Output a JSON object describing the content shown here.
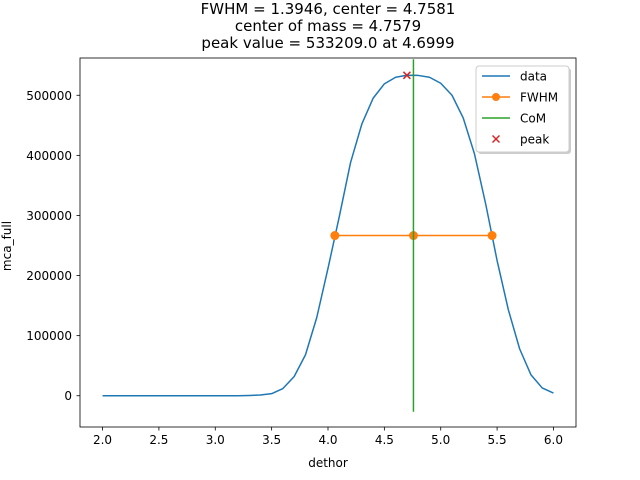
{
  "chart_data": {
    "type": "line",
    "title_lines": [
      "FWHM = 1.3946, center = 4.7581",
      "center of mass = 4.7579",
      "peak value = 533209.0 at 4.6999"
    ],
    "xlabel": "dethor",
    "ylabel": "mca_full",
    "xlim": [
      1.8,
      6.2
    ],
    "ylim": [
      -52000,
      562000
    ],
    "x_ticks": [
      2.0,
      2.5,
      3.0,
      3.5,
      4.0,
      4.5,
      5.0,
      5.5,
      6.0
    ],
    "x_tick_labels": [
      "2.0",
      "2.5",
      "3.0",
      "3.5",
      "4.0",
      "4.5",
      "5.0",
      "5.5",
      "6.0"
    ],
    "y_ticks": [
      0,
      100000,
      200000,
      300000,
      400000,
      500000
    ],
    "y_tick_labels": [
      "0",
      "100000",
      "200000",
      "300000",
      "400000",
      "500000"
    ],
    "grid": false,
    "legend_position": "top-right",
    "series": [
      {
        "name": "data",
        "color": "#1f77b4",
        "marker": "none",
        "x": [
          2.0,
          2.1,
          2.2,
          2.3,
          2.4,
          2.5,
          2.6,
          2.7,
          2.8,
          2.9,
          3.0,
          3.1,
          3.2,
          3.3,
          3.4,
          3.5,
          3.6,
          3.7,
          3.8,
          3.9,
          4.0,
          4.1,
          4.2,
          4.3,
          4.4,
          4.5,
          4.6,
          4.7,
          4.8,
          4.9,
          5.0,
          5.1,
          5.2,
          5.3,
          5.4,
          5.5,
          5.6,
          5.7,
          5.8,
          5.9,
          6.0
        ],
        "y": [
          0,
          0,
          0,
          0,
          0,
          0,
          0,
          0,
          0,
          0,
          0,
          0,
          0,
          500,
          1200,
          3500,
          12000,
          32000,
          68000,
          130000,
          212000,
          298000,
          388000,
          452000,
          495000,
          519000,
          530000,
          533209,
          533000,
          530000,
          520000,
          500000,
          462000,
          402000,
          318000,
          225000,
          143000,
          78000,
          35000,
          13000,
          4500
        ]
      },
      {
        "name": "FWHM",
        "color": "#ff7f0e",
        "marker": "circle",
        "x": [
          4.0608,
          4.7581,
          5.4554
        ],
        "y": [
          266604.5,
          266604.5,
          266604.5
        ]
      },
      {
        "name": "CoM",
        "color": "#2ca02c",
        "marker": "none",
        "x": [
          4.7579,
          4.7579
        ],
        "y": [
          -26660,
          559870
        ]
      },
      {
        "name": "peak",
        "color": "#d62728",
        "marker": "x",
        "x": [
          4.6999
        ],
        "y": [
          533209
        ]
      }
    ]
  }
}
